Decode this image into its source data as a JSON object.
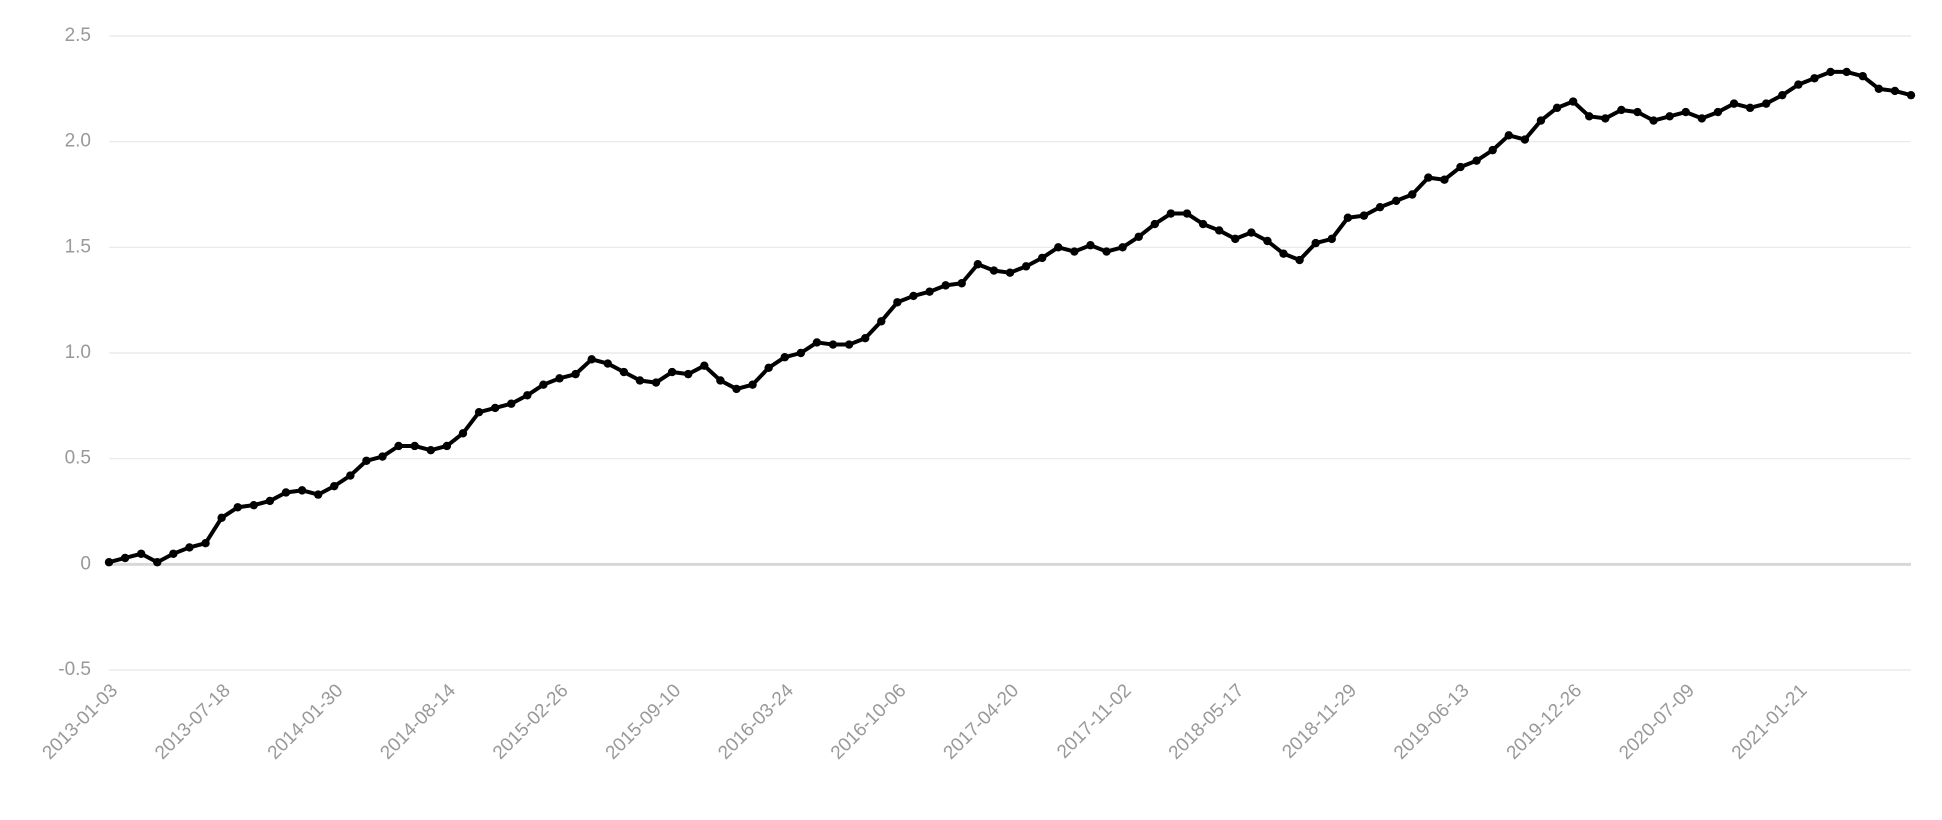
{
  "chart_data": {
    "type": "line",
    "categories": [
      "2013-01-03",
      null,
      null,
      null,
      null,
      null,
      null,
      "2013-07-18",
      null,
      null,
      null,
      null,
      null,
      null,
      "2014-01-30",
      null,
      null,
      null,
      null,
      null,
      null,
      "2014-08-14",
      null,
      null,
      null,
      null,
      null,
      null,
      "2015-02-26",
      null,
      null,
      null,
      null,
      null,
      null,
      "2015-09-10",
      null,
      null,
      null,
      null,
      null,
      null,
      "2016-03-24",
      null,
      null,
      null,
      null,
      null,
      null,
      "2016-10-06",
      null,
      null,
      null,
      null,
      null,
      null,
      "2017-04-20",
      null,
      null,
      null,
      null,
      null,
      null,
      "2017-11-02",
      null,
      null,
      null,
      null,
      null,
      null,
      "2018-05-17",
      null,
      null,
      null,
      null,
      null,
      null,
      "2018-11-29",
      null,
      null,
      null,
      null,
      null,
      null,
      "2019-06-13",
      null,
      null,
      null,
      null,
      null,
      null,
      "2019-12-26",
      null,
      null,
      null,
      null,
      null,
      null,
      "2020-07-09",
      null,
      null,
      null,
      null,
      null,
      null,
      "2021-01-21",
      null,
      null,
      null,
      null,
      null,
      null,
      null
    ],
    "values": [
      0.01,
      0.03,
      0.05,
      0.01,
      0.05,
      0.08,
      0.1,
      0.22,
      0.27,
      0.28,
      0.3,
      0.34,
      0.35,
      0.33,
      0.37,
      0.42,
      0.49,
      0.51,
      0.56,
      0.56,
      0.54,
      0.56,
      0.62,
      0.72,
      0.74,
      0.76,
      0.8,
      0.85,
      0.88,
      0.9,
      0.97,
      0.95,
      0.91,
      0.87,
      0.86,
      0.91,
      0.9,
      0.94,
      0.87,
      0.83,
      0.85,
      0.93,
      0.98,
      1.0,
      1.05,
      1.04,
      1.04,
      1.07,
      1.15,
      1.24,
      1.27,
      1.29,
      1.32,
      1.33,
      1.42,
      1.39,
      1.38,
      1.41,
      1.45,
      1.5,
      1.48,
      1.51,
      1.48,
      1.5,
      1.55,
      1.61,
      1.66,
      1.66,
      1.61,
      1.58,
      1.54,
      1.57,
      1.53,
      1.47,
      1.44,
      1.52,
      1.54,
      1.64,
      1.65,
      1.69,
      1.72,
      1.75,
      1.83,
      1.82,
      1.88,
      1.91,
      1.96,
      2.03,
      2.01,
      2.1,
      2.16,
      2.19,
      2.12,
      2.11,
      2.15,
      2.14,
      2.1,
      2.12,
      2.14,
      2.11,
      2.14,
      2.18,
      2.16,
      2.18,
      2.22,
      2.27,
      2.3,
      2.33,
      2.33,
      2.31,
      2.25,
      2.24,
      2.22
    ],
    "color": "#000000",
    "ylim": [
      -0.5,
      2.5
    ],
    "yticks": [
      -0.5,
      0,
      0.5,
      {
        "value": 1,
        "label": "1.0"
      },
      1.5,
      {
        "value": 2,
        "label": "2.0"
      },
      2.5
    ],
    "grid": true
  }
}
